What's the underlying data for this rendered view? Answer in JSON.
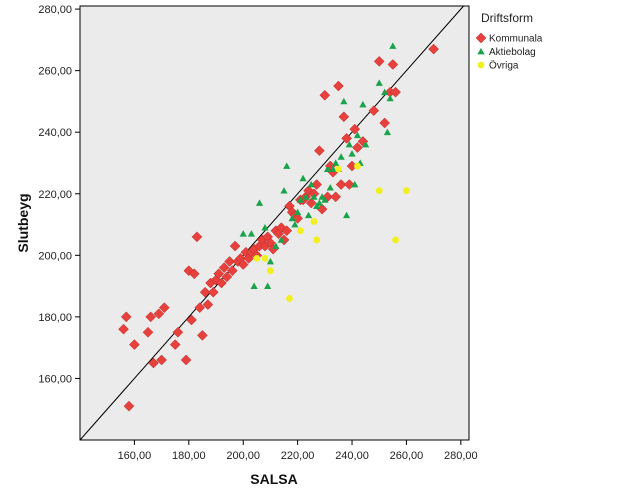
{
  "chart_data": {
    "type": "scatter",
    "xlabel": "SALSA",
    "ylabel": "Slutbeyg",
    "xlim": [
      140,
      283
    ],
    "ylim": [
      140,
      281
    ],
    "xticks": [
      160,
      180,
      200,
      220,
      240,
      260,
      280
    ],
    "yticks": [
      160,
      180,
      200,
      220,
      240,
      260,
      280
    ],
    "xtick_labels": [
      "160,00",
      "180,00",
      "200,00",
      "220,00",
      "240,00",
      "260,00",
      "280,00"
    ],
    "ytick_labels": [
      "160,00",
      "180,00",
      "200,00",
      "220,00",
      "240,00",
      "260,00",
      "280,00"
    ],
    "reference_line": "y = x",
    "grid": false,
    "legend_placement": "right",
    "legend_title": "Driftsform",
    "colors": {
      "plot_background": "#ebebeb",
      "frame": "#000000",
      "reference_line": "#000000"
    },
    "series": [
      {
        "name": "Kommunala",
        "marker": "diamond",
        "color": "#e8403c",
        "points": [
          [
            158,
            151
          ],
          [
            156,
            176
          ],
          [
            157,
            180
          ],
          [
            160,
            171
          ],
          [
            165,
            175
          ],
          [
            166,
            180
          ],
          [
            167,
            165
          ],
          [
            169,
            181
          ],
          [
            170,
            166
          ],
          [
            171,
            183
          ],
          [
            175,
            171
          ],
          [
            176,
            175
          ],
          [
            179,
            166
          ],
          [
            180,
            195
          ],
          [
            181,
            179
          ],
          [
            182,
            194
          ],
          [
            183,
            206
          ],
          [
            184,
            183
          ],
          [
            185,
            174
          ],
          [
            186,
            188
          ],
          [
            187,
            184
          ],
          [
            188,
            191
          ],
          [
            189,
            188
          ],
          [
            190,
            192
          ],
          [
            191,
            194
          ],
          [
            192,
            191
          ],
          [
            193,
            196
          ],
          [
            194,
            193
          ],
          [
            195,
            198
          ],
          [
            196,
            195
          ],
          [
            197,
            203
          ],
          [
            198,
            198
          ],
          [
            199,
            199
          ],
          [
            200,
            197
          ],
          [
            201,
            201
          ],
          [
            202,
            199
          ],
          [
            203,
            201
          ],
          [
            204,
            202
          ],
          [
            205,
            200
          ],
          [
            206,
            203
          ],
          [
            207,
            205
          ],
          [
            208,
            203
          ],
          [
            209,
            206
          ],
          [
            210,
            204
          ],
          [
            211,
            202
          ],
          [
            212,
            208
          ],
          [
            213,
            207
          ],
          [
            214,
            209
          ],
          [
            215,
            205
          ],
          [
            216,
            208
          ],
          [
            217,
            216
          ],
          [
            218,
            214
          ],
          [
            219,
            213
          ],
          [
            220,
            212
          ],
          [
            221,
            218
          ],
          [
            222,
            218
          ],
          [
            223,
            219
          ],
          [
            224,
            221
          ],
          [
            225,
            217
          ],
          [
            226,
            220
          ],
          [
            227,
            223
          ],
          [
            228,
            234
          ],
          [
            229,
            215
          ],
          [
            230,
            252
          ],
          [
            231,
            219
          ],
          [
            232,
            229
          ],
          [
            233,
            227
          ],
          [
            234,
            219
          ],
          [
            235,
            255
          ],
          [
            236,
            223
          ],
          [
            237,
            245
          ],
          [
            238,
            238
          ],
          [
            239,
            223
          ],
          [
            240,
            229
          ],
          [
            241,
            241
          ],
          [
            242,
            235
          ],
          [
            244,
            237
          ],
          [
            248,
            247
          ],
          [
            250,
            263
          ],
          [
            252,
            243
          ],
          [
            254,
            253
          ],
          [
            255,
            262
          ],
          [
            256,
            253
          ],
          [
            270,
            267
          ]
        ]
      },
      {
        "name": "Aktiebolag",
        "marker": "triangle",
        "color": "#1aa34a",
        "points": [
          [
            200,
            207
          ],
          [
            203,
            207
          ],
          [
            204,
            190
          ],
          [
            206,
            217
          ],
          [
            208,
            209
          ],
          [
            209,
            190
          ],
          [
            210,
            198
          ],
          [
            212,
            203
          ],
          [
            214,
            205
          ],
          [
            215,
            221
          ],
          [
            216,
            229
          ],
          [
            218,
            212
          ],
          [
            219,
            210
          ],
          [
            220,
            214
          ],
          [
            221,
            218
          ],
          [
            222,
            225
          ],
          [
            223,
            219
          ],
          [
            224,
            213
          ],
          [
            225,
            223
          ],
          [
            226,
            219
          ],
          [
            227,
            216
          ],
          [
            228,
            217
          ],
          [
            229,
            219
          ],
          [
            230,
            218
          ],
          [
            231,
            228
          ],
          [
            232,
            222
          ],
          [
            233,
            228
          ],
          [
            234,
            230
          ],
          [
            235,
            228
          ],
          [
            236,
            232
          ],
          [
            237,
            250
          ],
          [
            238,
            213
          ],
          [
            239,
            236
          ],
          [
            240,
            233
          ],
          [
            241,
            223
          ],
          [
            242,
            239
          ],
          [
            243,
            230
          ],
          [
            244,
            249
          ],
          [
            245,
            236
          ],
          [
            250,
            256
          ],
          [
            252,
            253
          ],
          [
            253,
            240
          ],
          [
            254,
            251
          ],
          [
            255,
            268
          ]
        ]
      },
      {
        "name": "Övriga",
        "marker": "circle",
        "color": "#f2ef1e",
        "points": [
          [
            205,
            199
          ],
          [
            208,
            199
          ],
          [
            210,
            195
          ],
          [
            217,
            186
          ],
          [
            221,
            208
          ],
          [
            226,
            211
          ],
          [
            227,
            205
          ],
          [
            235,
            228
          ],
          [
            242,
            229
          ],
          [
            250,
            221
          ],
          [
            256,
            205
          ],
          [
            260,
            221
          ]
        ]
      }
    ]
  }
}
